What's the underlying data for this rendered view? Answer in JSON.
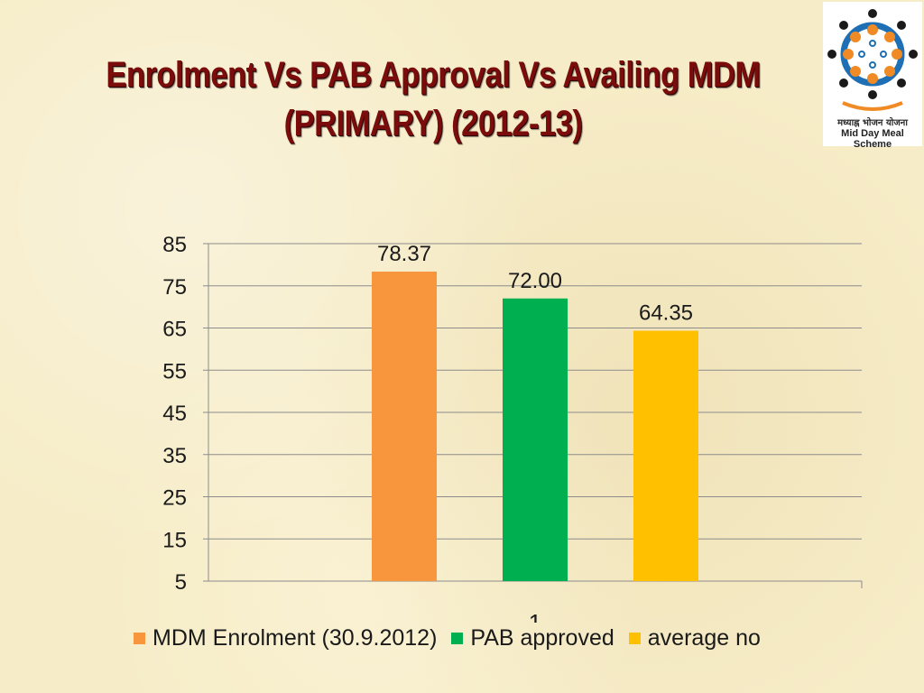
{
  "slide": {
    "title_line1": "Enrolment Vs PAB Approval Vs Availing MDM",
    "title_line2": "(PRIMARY) (2012-13)"
  },
  "logo": {
    "icon": "mid-day-meal-logo",
    "text_hindi": "मध्याह्न भोजन योजना",
    "text_english": "Mid Day Meal Scheme"
  },
  "chart_data": {
    "type": "bar",
    "title": "",
    "xlabel": "",
    "ylabel": "",
    "categories": [
      "1"
    ],
    "series": [
      {
        "name": "MDM Enrolment (30.9.2012)",
        "values": [
          78.37
        ],
        "label": "78.37",
        "color": "#f7963c"
      },
      {
        "name": "PAB approved",
        "values": [
          72.0
        ],
        "label": "72.00",
        "color": "#00b050"
      },
      {
        "name": "average no",
        "values": [
          64.35
        ],
        "label": "64.35",
        "color": "#ffc000"
      }
    ],
    "ylim": [
      5,
      85
    ],
    "yticks": [
      "5",
      "15",
      "25",
      "35",
      "45",
      "55",
      "65",
      "75",
      "85"
    ],
    "grid": true,
    "legend_position": "bottom"
  }
}
